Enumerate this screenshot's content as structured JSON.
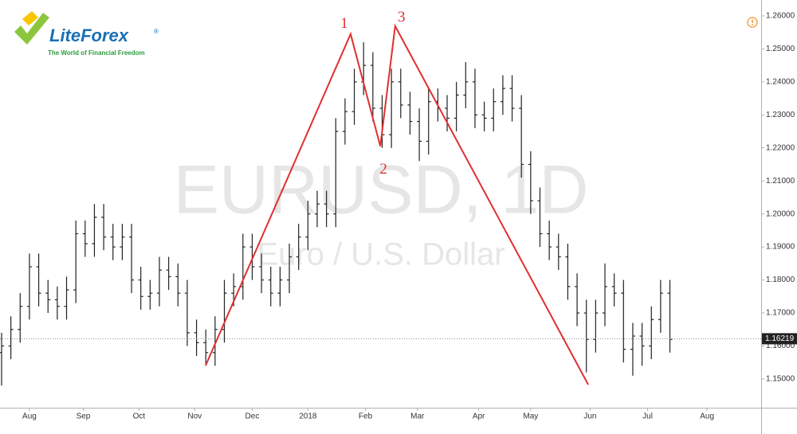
{
  "chart_data": {
    "type": "ohlc",
    "title": "EURUSD, 1D",
    "subtitle": "Euro / U.S. Dollar",
    "logo": {
      "name": "LiteForex",
      "mark": "®",
      "tagline": "The World of Financial Freedom"
    },
    "color": "#222222",
    "x": [
      0,
      5,
      10,
      15,
      20,
      25,
      30,
      35,
      40,
      45,
      50,
      55,
      60,
      65,
      70,
      75,
      80,
      85,
      90,
      95,
      100,
      105,
      110,
      115,
      120,
      125,
      130,
      135,
      140,
      145,
      150,
      155,
      160,
      165,
      170,
      175,
      180,
      185,
      190,
      195,
      200,
      205,
      210,
      215,
      220,
      225,
      230,
      235,
      240,
      245,
      250,
      255,
      260,
      265,
      270,
      275,
      280,
      285,
      290,
      295,
      300,
      305,
      310,
      315,
      320,
      325,
      330,
      335,
      340,
      345,
      350,
      355,
      360
    ],
    "open": [
      1.158,
      1.16,
      1.165,
      1.172,
      1.184,
      1.176,
      1.174,
      1.172,
      1.177,
      1.194,
      1.191,
      1.199,
      1.193,
      1.19,
      1.193,
      1.18,
      1.175,
      1.176,
      1.183,
      1.181,
      1.176,
      1.164,
      1.161,
      1.158,
      1.165,
      1.176,
      1.178,
      1.19,
      1.184,
      1.18,
      1.176,
      1.18,
      1.187,
      1.193,
      1.2,
      1.203,
      1.2,
      1.225,
      1.231,
      1.24,
      1.245,
      1.232,
      1.224,
      1.24,
      1.233,
      1.228,
      1.222,
      1.234,
      1.232,
      1.229,
      1.236,
      1.24,
      1.23,
      1.229,
      1.234,
      1.238,
      1.232,
      1.215,
      1.204,
      1.194,
      1.19,
      1.187,
      1.178,
      1.17,
      1.162,
      1.17,
      1.178,
      1.176,
      1.159,
      1.163,
      1.16,
      1.168,
      1.176
    ],
    "high": [
      1.164,
      1.169,
      1.176,
      1.188,
      1.188,
      1.18,
      1.178,
      1.181,
      1.198,
      1.198,
      1.203,
      1.203,
      1.197,
      1.197,
      1.197,
      1.184,
      1.18,
      1.187,
      1.187,
      1.185,
      1.18,
      1.168,
      1.165,
      1.169,
      1.18,
      1.182,
      1.194,
      1.194,
      1.188,
      1.184,
      1.184,
      1.191,
      1.197,
      1.204,
      1.207,
      1.207,
      1.229,
      1.235,
      1.244,
      1.252,
      1.249,
      1.236,
      1.244,
      1.244,
      1.237,
      1.232,
      1.238,
      1.238,
      1.236,
      1.24,
      1.246,
      1.244,
      1.234,
      1.238,
      1.242,
      1.242,
      1.236,
      1.219,
      1.208,
      1.198,
      1.194,
      1.191,
      1.182,
      1.174,
      1.174,
      1.185,
      1.182,
      1.18,
      1.167,
      1.167,
      1.172,
      1.18,
      1.18
    ],
    "low": [
      1.148,
      1.156,
      1.161,
      1.168,
      1.172,
      1.17,
      1.168,
      1.168,
      1.173,
      1.187,
      1.187,
      1.189,
      1.186,
      1.186,
      1.176,
      1.171,
      1.171,
      1.172,
      1.177,
      1.172,
      1.16,
      1.157,
      1.154,
      1.154,
      1.161,
      1.172,
      1.174,
      1.18,
      1.176,
      1.172,
      1.172,
      1.176,
      1.183,
      1.189,
      1.196,
      1.196,
      1.196,
      1.221,
      1.227,
      1.236,
      1.228,
      1.22,
      1.22,
      1.229,
      1.224,
      1.216,
      1.218,
      1.228,
      1.225,
      1.225,
      1.232,
      1.226,
      1.225,
      1.225,
      1.23,
      1.228,
      1.211,
      1.2,
      1.19,
      1.186,
      1.183,
      1.174,
      1.166,
      1.152,
      1.158,
      1.166,
      1.172,
      1.155,
      1.151,
      1.154,
      1.156,
      1.164,
      1.158
    ],
    "close": [
      1.16,
      1.165,
      1.172,
      1.184,
      1.176,
      1.174,
      1.172,
      1.177,
      1.194,
      1.191,
      1.199,
      1.193,
      1.19,
      1.193,
      1.18,
      1.175,
      1.176,
      1.183,
      1.181,
      1.176,
      1.164,
      1.161,
      1.158,
      1.165,
      1.176,
      1.178,
      1.19,
      1.184,
      1.18,
      1.176,
      1.18,
      1.187,
      1.193,
      1.2,
      1.203,
      1.2,
      1.225,
      1.231,
      1.24,
      1.245,
      1.232,
      1.224,
      1.24,
      1.233,
      1.228,
      1.222,
      1.234,
      1.232,
      1.229,
      1.236,
      1.24,
      1.23,
      1.229,
      1.234,
      1.238,
      1.232,
      1.215,
      1.204,
      1.194,
      1.19,
      1.187,
      1.178,
      1.17,
      1.162,
      1.17,
      1.178,
      1.176,
      1.159,
      1.163,
      1.16,
      1.168,
      1.176,
      1.162
    ],
    "last_price": {
      "value": 1.16219,
      "label": "1.16219"
    },
    "pattern": {
      "color": "#e03030",
      "x": [
        110,
        188,
        204,
        212,
        316
      ],
      "y": [
        1.1542,
        1.2545,
        1.2205,
        1.2569,
        1.1483
      ],
      "labels": [
        null,
        "1",
        "2",
        "3",
        null
      ]
    },
    "xlim": [
      0,
      410
    ],
    "xticks": [
      {
        "value": 15,
        "label": "Aug"
      },
      {
        "value": 44,
        "label": "Sep"
      },
      {
        "value": 74,
        "label": "Oct"
      },
      {
        "value": 104,
        "label": "Nov"
      },
      {
        "value": 135,
        "label": "Dec"
      },
      {
        "value": 165,
        "label": "2018"
      },
      {
        "value": 196,
        "label": "Feb"
      },
      {
        "value": 224,
        "label": "Mar"
      },
      {
        "value": 257,
        "label": "Apr"
      },
      {
        "value": 285,
        "label": "May"
      },
      {
        "value": 317,
        "label": "Jun"
      },
      {
        "value": 348,
        "label": "Jul"
      },
      {
        "value": 380,
        "label": "Aug"
      }
    ],
    "ylim": [
      1.1413,
      1.2648
    ],
    "yticks": [
      {
        "value": 1.15,
        "label": "1.15000"
      },
      {
        "value": 1.16,
        "label": "1.16000"
      },
      {
        "value": 1.17,
        "label": "1.17000"
      },
      {
        "value": 1.18,
        "label": "1.18000"
      },
      {
        "value": 1.19,
        "label": "1.19000"
      },
      {
        "value": 1.2,
        "label": "1.20000"
      },
      {
        "value": 1.21,
        "label": "1.21000"
      },
      {
        "value": 1.22,
        "label": "1.22000"
      },
      {
        "value": 1.23,
        "label": "1.23000"
      },
      {
        "value": 1.24,
        "label": "1.24000"
      },
      {
        "value": 1.25,
        "label": "1.25000"
      },
      {
        "value": 1.26,
        "label": "1.26000"
      }
    ],
    "grid": false
  }
}
